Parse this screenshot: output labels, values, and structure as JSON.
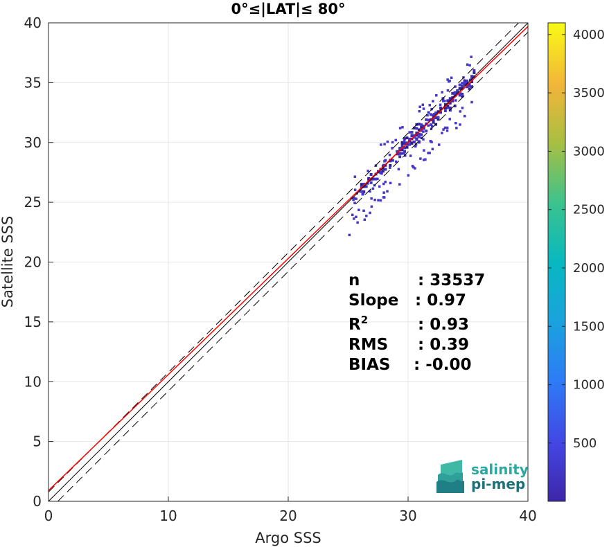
{
  "chart_data": {
    "type": "heatmap",
    "title": "0°≤|LAT|≤ 80°",
    "xlabel": "Argo SSS",
    "ylabel": "Satellite SSS",
    "xlim": [
      0,
      40
    ],
    "ylim": [
      0,
      40
    ],
    "xticks": [
      "0",
      "10",
      "20",
      "30",
      "40"
    ],
    "yticks": [
      "0",
      "5",
      "10",
      "15",
      "20",
      "25",
      "30",
      "35",
      "40"
    ],
    "grid": true,
    "colorbar": {
      "range": [
        1,
        4100
      ],
      "ticks": [
        "500",
        "1000",
        "1500",
        "2000",
        "2500",
        "3000",
        "3500",
        "4000"
      ],
      "tick_values": [
        500,
        1000,
        1500,
        2000,
        2500,
        3000,
        3500,
        4000
      ],
      "colormap": "parula"
    },
    "lines": [
      {
        "name": "1:1",
        "slope": 1,
        "intercept": 0,
        "color": "#000000",
        "style": "solid"
      },
      {
        "name": "1:1 +2 RMS",
        "slope": 1,
        "intercept": 0.78,
        "color": "#000000",
        "style": "dashed"
      },
      {
        "name": "1:1 -2 RMS",
        "slope": 1,
        "intercept": -0.78,
        "color": "#000000",
        "style": "dashed"
      },
      {
        "name": "fit",
        "slope": 0.97,
        "intercept": 0.9,
        "color": "#ff0000",
        "style": "solid"
      }
    ],
    "density_clusters": [
      {
        "x0": 29.0,
        "x1": 35.5,
        "halfwidth": 0.9
      },
      {
        "x0": 26.0,
        "x1": 29.0,
        "halfwidth": 0.5
      }
    ],
    "stats": [
      {
        "key": "n",
        "value": ": 33537",
        "sup": ""
      },
      {
        "key": "Slope",
        "value": ": 0.97",
        "sup": ""
      },
      {
        "key": "R",
        "value": ": 0.93",
        "sup": "2"
      },
      {
        "key": "RMS",
        "value": ": 0.39",
        "sup": ""
      },
      {
        "key": "BIAS",
        "value": ": -0.00",
        "sup": ""
      }
    ]
  },
  "logo": {
    "line1": "salinity",
    "line2": "pi-mep",
    "color_line1": "#2aa9a0",
    "color_line2": "#1d6f78"
  }
}
